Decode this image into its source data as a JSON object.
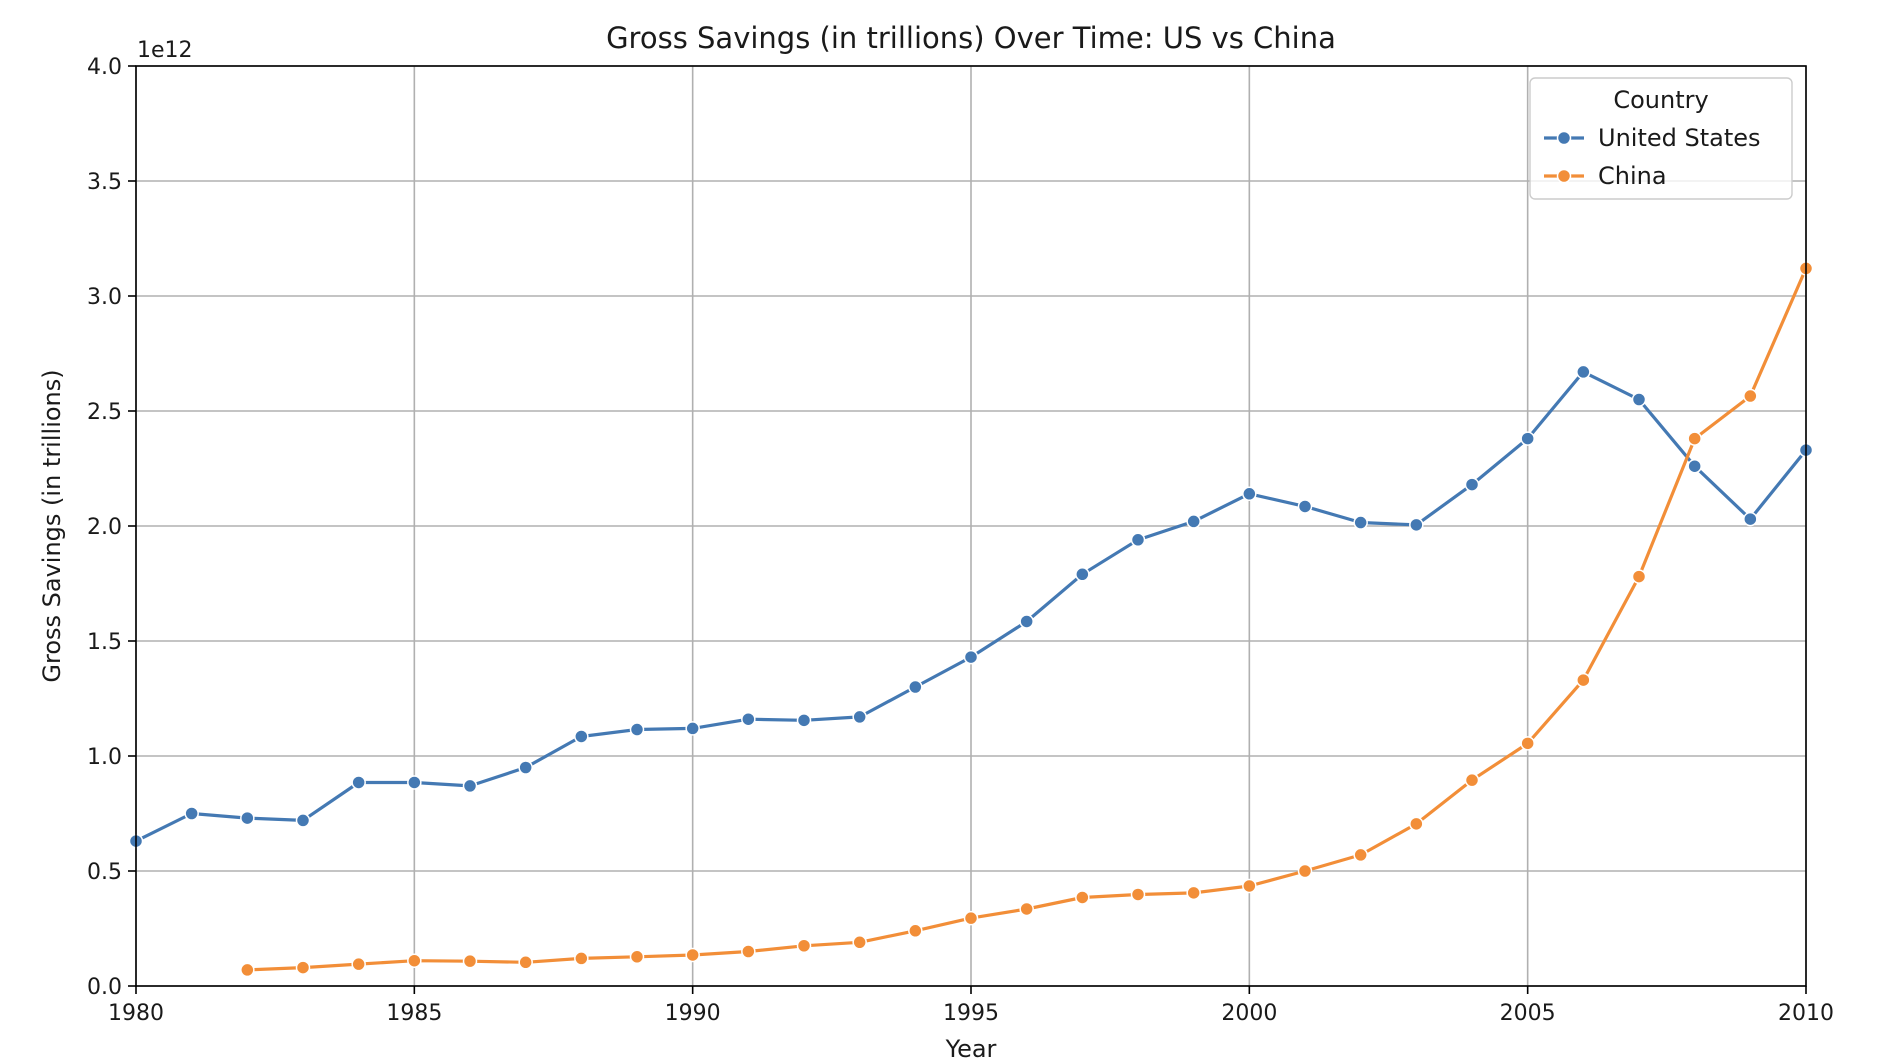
{
  "chart_data": {
    "type": "line",
    "title": "Gross Savings (in trillions) Over Time: US vs China",
    "xlabel": "Year",
    "ylabel": "Gross Savings (in trillions)",
    "y_offset_label": "1e12",
    "xlim": [
      1980,
      2010
    ],
    "ylim": [
      0,
      4.0
    ],
    "y_unit_multiplier": 1000000000000.0,
    "x_ticks": [
      1980,
      1985,
      1990,
      1995,
      2000,
      2005,
      2010
    ],
    "y_ticks": [
      0.0,
      0.5,
      1.0,
      1.5,
      2.0,
      2.5,
      3.0,
      3.5,
      4.0
    ],
    "y_tick_labels": [
      "0.0",
      "0.5",
      "1.0",
      "1.5",
      "2.0",
      "2.5",
      "3.0",
      "3.5",
      "4.0"
    ],
    "grid": true,
    "legend": {
      "title": "Country",
      "placement": "top-right"
    },
    "series": [
      {
        "name": "United States",
        "color": "#4479b3",
        "x": [
          1980,
          1981,
          1982,
          1983,
          1984,
          1985,
          1986,
          1987,
          1988,
          1989,
          1990,
          1991,
          1992,
          1993,
          1994,
          1995,
          1996,
          1997,
          1998,
          1999,
          2000,
          2001,
          2002,
          2003,
          2004,
          2005,
          2006,
          2007,
          2008,
          2009,
          2010
        ],
        "y": [
          0.63,
          0.75,
          0.73,
          0.72,
          0.885,
          0.885,
          0.87,
          0.95,
          1.085,
          1.115,
          1.12,
          1.16,
          1.155,
          1.17,
          1.3,
          1.43,
          1.585,
          1.79,
          1.94,
          2.02,
          2.14,
          2.085,
          2.015,
          2.005,
          2.18,
          2.38,
          2.67,
          2.55,
          2.26,
          2.03,
          2.33
        ]
      },
      {
        "name": "China",
        "color": "#f28e38",
        "x": [
          1982,
          1983,
          1984,
          1985,
          1986,
          1987,
          1988,
          1989,
          1990,
          1991,
          1992,
          1993,
          1994,
          1995,
          1996,
          1997,
          1998,
          1999,
          2000,
          2001,
          2002,
          2003,
          2004,
          2005,
          2006,
          2007,
          2008,
          2009,
          2010
        ],
        "y": [
          0.07,
          0.08,
          0.095,
          0.11,
          0.108,
          0.103,
          0.12,
          0.127,
          0.135,
          0.15,
          0.175,
          0.19,
          0.24,
          0.295,
          0.335,
          0.385,
          0.398,
          0.405,
          0.435,
          0.5,
          0.57,
          0.705,
          0.895,
          1.055,
          1.33,
          1.78,
          2.38,
          2.565,
          3.12
        ]
      }
    ]
  }
}
